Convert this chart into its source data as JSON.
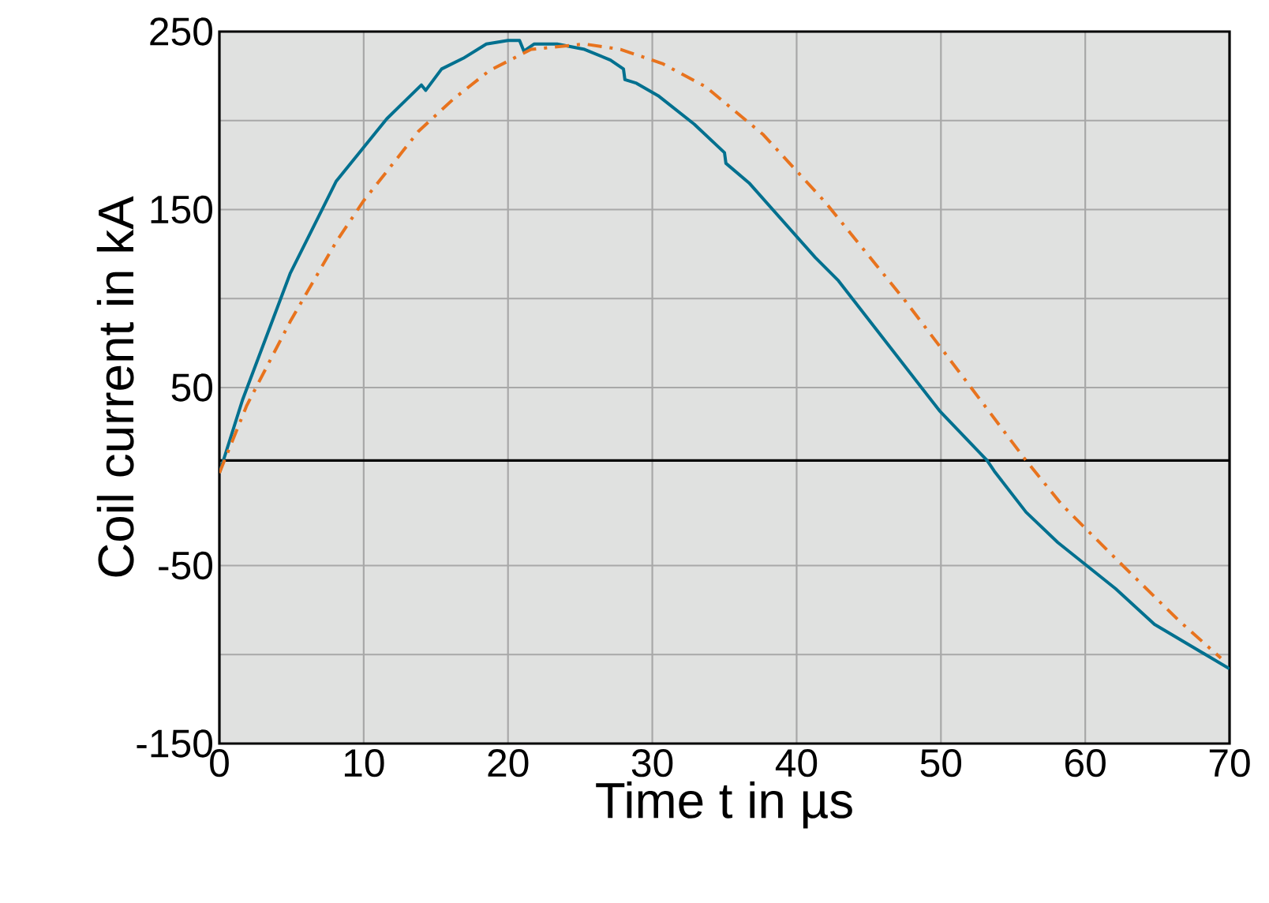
{
  "chart_data": {
    "type": "line",
    "xlabel": "Time t in µs",
    "ylabel": "Coil current in kA",
    "xlim": [
      0,
      70
    ],
    "ylim": [
      -150,
      250
    ],
    "xticks": [
      0,
      10,
      20,
      30,
      40,
      50,
      60,
      70
    ],
    "yticks": [
      250,
      {
        "value": 200,
        "label": null
      },
      150,
      {
        "value": 100,
        "label": null
      },
      50,
      -50,
      {
        "value": -100,
        "label": null
      },
      -150
    ],
    "grid": true,
    "ref_lines": [
      {
        "axis": "y",
        "value": 9,
        "color": "#000000"
      }
    ],
    "series": [
      {
        "color": "#00708f",
        "line_style": "solid",
        "x": [
          0,
          1.6,
          4.9,
          8.1,
          11.6,
          14.0,
          14.3,
          15.4,
          16.9,
          18.5,
          20.0,
          20.8,
          21.1,
          21.8,
          23.4,
          25.3,
          27.1,
          28.0,
          28.1,
          28.9,
          30.4,
          32.9,
          35.0,
          35.1,
          36.7,
          41.3,
          42.9,
          49.9,
          53.2,
          53.7,
          55.9,
          58.1,
          60.1,
          62.1,
          64.8,
          70
        ],
        "values": [
          2,
          43,
          114,
          166,
          201,
          220,
          217,
          229,
          235,
          243,
          245,
          245,
          239,
          243,
          243,
          240,
          234,
          229,
          223,
          221,
          214,
          198,
          182,
          176,
          165,
          123,
          110,
          37,
          9,
          3,
          -20,
          -37,
          -50,
          -63,
          -83,
          -108
        ]
      },
      {
        "color": "#e8731e",
        "line_style": "dashdot",
        "x": [
          0,
          1.9,
          4.9,
          8.1,
          10.0,
          13.8,
          16.2,
          18.7,
          21.6,
          25.3,
          27.8,
          30.7,
          33.7,
          37.7,
          42.0,
          47.5,
          51.9,
          55.9,
          58.4,
          62.1,
          66.5,
          69.4
        ],
        "values": [
          2,
          40,
          87,
          132,
          155,
          194,
          212,
          228,
          240,
          243,
          240,
          232,
          219,
          192,
          154,
          99,
          52,
          9,
          -16,
          -46,
          -81,
          -102
        ]
      }
    ]
  }
}
